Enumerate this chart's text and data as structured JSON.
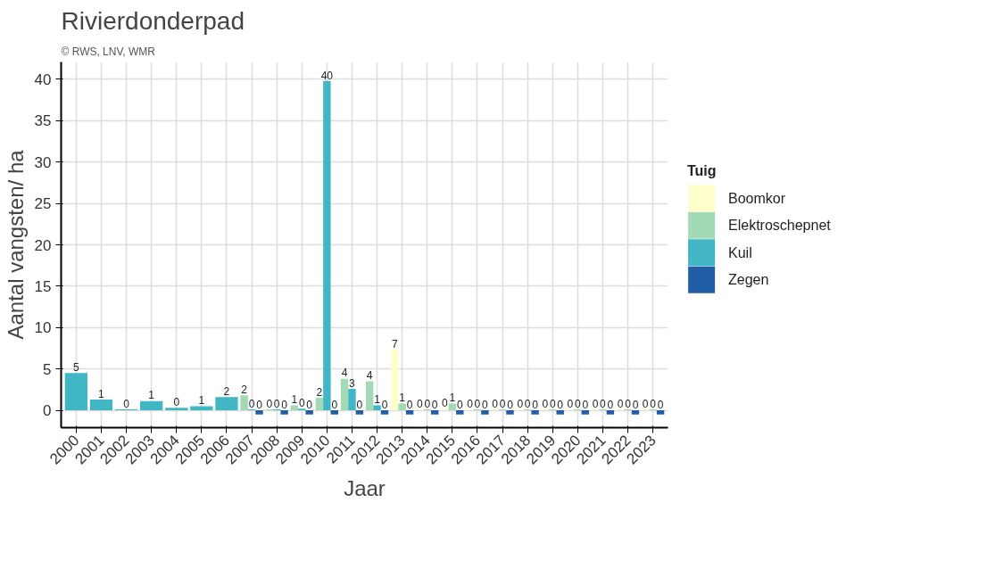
{
  "chart_data": {
    "type": "bar",
    "title": "Rivierdonderpad",
    "subtitle": "© RWS, LNV, WMR",
    "xlabel": "Jaar",
    "ylabel": "Aantal vangsten/ ha",
    "legend_title": "Tuig",
    "categories": [
      "2000",
      "2001",
      "2002",
      "2003",
      "2004",
      "2005",
      "2006",
      "2007",
      "2008",
      "2009",
      "2010",
      "2011",
      "2012",
      "2013",
      "2014",
      "2015",
      "2016",
      "2017",
      "2018",
      "2019",
      "2020",
      "2021",
      "2022",
      "2023"
    ],
    "series": [
      {
        "name": "Boomkor",
        "color": "#ffffcc",
        "values": [
          null,
          null,
          null,
          null,
          null,
          null,
          null,
          null,
          null,
          null,
          null,
          null,
          null,
          7.3,
          0.1,
          0.2,
          0.1,
          0.1,
          0.1,
          0.1,
          0.1,
          0.1,
          0.1,
          0.1
        ],
        "value_labels": [
          null,
          null,
          null,
          null,
          null,
          null,
          null,
          null,
          null,
          null,
          null,
          null,
          null,
          "7",
          "0",
          "0",
          "0",
          "0",
          "0",
          "0",
          "0",
          "0",
          "0",
          "0"
        ]
      },
      {
        "name": "Elektroschepnet",
        "color": "#a1dab4",
        "values": [
          null,
          null,
          null,
          null,
          null,
          null,
          null,
          1.8,
          0.1,
          0.6,
          1.5,
          3.8,
          3.5,
          0.8,
          0.1,
          0.8,
          0.1,
          0.1,
          0.1,
          0.1,
          0.1,
          0.1,
          0.1,
          0.1
        ],
        "value_labels": [
          null,
          null,
          null,
          null,
          null,
          null,
          null,
          "2",
          "0",
          "1",
          "2",
          "4",
          "4",
          "1",
          "0",
          "1",
          "0",
          "0",
          "0",
          "0",
          "0",
          "0",
          "0",
          "0"
        ]
      },
      {
        "name": "Kuil",
        "color": "#41b6c4",
        "values": [
          4.5,
          1.3,
          0.1,
          1.1,
          0.3,
          0.5,
          1.6,
          0.1,
          0.1,
          0.2,
          39.8,
          2.6,
          0.6,
          null,
          null,
          null,
          null,
          null,
          null,
          null,
          null,
          null,
          null,
          null
        ],
        "value_labels": [
          "5",
          "1",
          "0",
          "1",
          "0",
          "1",
          "2",
          "0",
          "0",
          "0",
          "40",
          "3",
          "1",
          null,
          null,
          null,
          null,
          null,
          null,
          null,
          null,
          null,
          null,
          null
        ]
      },
      {
        "name": "Zegen",
        "color": "#225ea8",
        "values": [
          null,
          null,
          null,
          null,
          null,
          null,
          null,
          -0.5,
          -0.5,
          -0.5,
          -0.5,
          -0.5,
          -0.5,
          -0.5,
          -0.5,
          -0.5,
          -0.5,
          -0.5,
          -0.5,
          -0.5,
          -0.5,
          -0.5,
          -0.5,
          -0.5
        ],
        "value_labels": [
          null,
          null,
          null,
          null,
          null,
          null,
          null,
          "0",
          "0",
          "0",
          "0",
          "0",
          "0",
          "0",
          "0",
          "0",
          "0",
          "0",
          "0",
          "0",
          "0",
          "0",
          "0",
          "0"
        ]
      }
    ],
    "ylim": [
      -2.1,
      42.1
    ],
    "yticks": [
      0,
      5,
      10,
      15,
      20,
      25,
      30,
      35,
      40
    ],
    "grid": true,
    "legend": "right"
  }
}
